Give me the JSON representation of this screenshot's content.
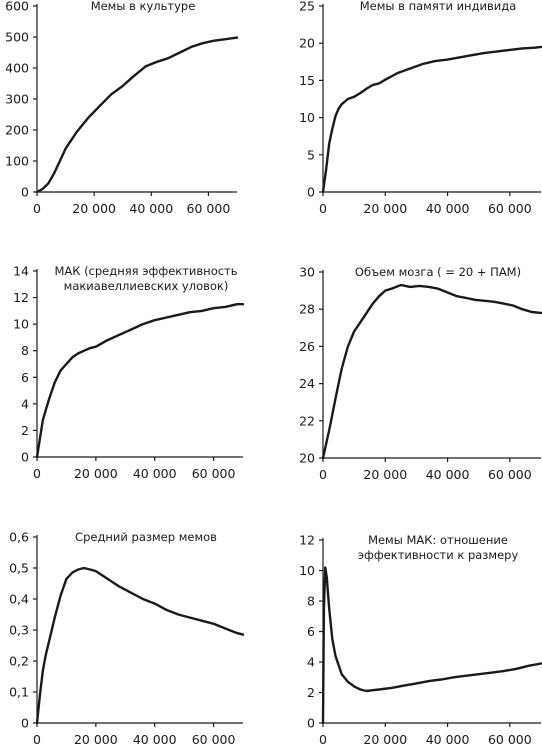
{
  "chart_data": [
    {
      "type": "line",
      "title": [
        "Мемы в культуре"
      ],
      "x_ticks": [
        "0",
        "20 000",
        "40 000",
        "60 000"
      ],
      "y_ticks": [
        "0",
        "100",
        "200",
        "300",
        "400",
        "500",
        "600"
      ],
      "xlim": [
        0,
        70000
      ],
      "ylim": [
        0,
        600
      ],
      "x": [
        0,
        2000,
        4000,
        6000,
        8000,
        10000,
        14000,
        18000,
        22000,
        26000,
        30000,
        34000,
        38000,
        42000,
        46000,
        50000,
        54000,
        58000,
        62000,
        66000,
        70000
      ],
      "y": [
        0,
        10,
        28,
        60,
        100,
        140,
        195,
        240,
        278,
        315,
        342,
        375,
        405,
        420,
        432,
        450,
        468,
        480,
        488,
        493,
        498
      ]
    },
    {
      "type": "line",
      "title": [
        "Мемы в памяти индивида"
      ],
      "x_ticks": [
        "0",
        "20 000",
        "40 000",
        "60 000"
      ],
      "y_ticks": [
        "0",
        "5",
        "10",
        "15",
        "20",
        "25"
      ],
      "xlim": [
        0,
        70000
      ],
      "ylim": [
        0,
        25
      ],
      "x": [
        0,
        1000,
        2000,
        3000,
        4000,
        5000,
        6000,
        8000,
        10000,
        12000,
        14000,
        16000,
        18000,
        20000,
        24000,
        28000,
        32000,
        36000,
        40000,
        44000,
        48000,
        52000,
        56000,
        60000,
        64000,
        68000,
        70000
      ],
      "y": [
        0,
        3,
        6.5,
        8.5,
        10.2,
        11.2,
        11.8,
        12.5,
        12.8,
        13.3,
        13.9,
        14.4,
        14.6,
        15.1,
        16.0,
        16.6,
        17.2,
        17.6,
        17.8,
        18.1,
        18.4,
        18.7,
        18.9,
        19.1,
        19.3,
        19.4,
        19.5
      ]
    },
    {
      "type": "line",
      "title": [
        "МАК (средняя эффективность",
        "макиавеллиевских уловок)"
      ],
      "x_ticks": [
        "0",
        "20 000",
        "40 000",
        "60 000"
      ],
      "y_ticks": [
        "0",
        "2",
        "4",
        "6",
        "8",
        "10",
        "12",
        "14"
      ],
      "xlim": [
        0,
        70000
      ],
      "ylim": [
        0,
        14
      ],
      "x": [
        0,
        2000,
        4000,
        6000,
        8000,
        10000,
        12000,
        14000,
        16000,
        18000,
        20000,
        24000,
        28000,
        32000,
        36000,
        40000,
        44000,
        48000,
        52000,
        56000,
        60000,
        64000,
        68000,
        70000
      ],
      "y": [
        0,
        2.8,
        4.3,
        5.6,
        6.5,
        7.0,
        7.5,
        7.8,
        8.0,
        8.2,
        8.3,
        8.8,
        9.2,
        9.6,
        10.0,
        10.3,
        10.5,
        10.7,
        10.9,
        11.0,
        11.2,
        11.3,
        11.5,
        11.5
      ]
    },
    {
      "type": "line",
      "title": [
        "Объем мозга ( = 20 + ПАМ)"
      ],
      "x_ticks": [
        "0",
        "20 000",
        "40 000",
        "60 000"
      ],
      "y_ticks": [
        "20",
        "22",
        "24",
        "26",
        "28",
        "30"
      ],
      "xlim": [
        0,
        70000
      ],
      "ylim": [
        20,
        30
      ],
      "x": [
        0,
        2000,
        4000,
        6000,
        8000,
        10000,
        12000,
        14000,
        16000,
        18000,
        20000,
        22000,
        25000,
        28000,
        31000,
        34000,
        37000,
        40000,
        43000,
        46000,
        49000,
        52000,
        55000,
        58000,
        61000,
        64000,
        67000,
        70000
      ],
      "y": [
        20,
        21.5,
        23.2,
        24.8,
        26.0,
        26.8,
        27.3,
        27.8,
        28.3,
        28.7,
        29.0,
        29.1,
        29.3,
        29.2,
        29.25,
        29.2,
        29.1,
        28.9,
        28.7,
        28.6,
        28.5,
        28.45,
        28.4,
        28.3,
        28.2,
        28.0,
        27.85,
        27.8
      ]
    },
    {
      "type": "line",
      "title": [
        "Средний размер мемов"
      ],
      "x_ticks": [
        "0",
        "20 000",
        "40 000",
        "60 000"
      ],
      "y_ticks": [
        "0",
        "0,1",
        "0,2",
        "0,3",
        "0,4",
        "0,5",
        "0,6"
      ],
      "xlim": [
        0,
        70000
      ],
      "ylim": [
        0,
        0.6
      ],
      "x": [
        0,
        1000,
        2000,
        3000,
        4000,
        6000,
        8000,
        10000,
        12000,
        14000,
        16000,
        18000,
        20000,
        24000,
        28000,
        32000,
        36000,
        40000,
        44000,
        48000,
        52000,
        56000,
        60000,
        64000,
        68000,
        70000
      ],
      "y": [
        0,
        0.09,
        0.17,
        0.22,
        0.26,
        0.34,
        0.41,
        0.465,
        0.485,
        0.495,
        0.5,
        0.495,
        0.49,
        0.465,
        0.44,
        0.42,
        0.4,
        0.385,
        0.365,
        0.35,
        0.34,
        0.33,
        0.32,
        0.305,
        0.29,
        0.285
      ]
    },
    {
      "type": "line",
      "title": [
        "Мемы МАК: отношение",
        "эффективности к размеру"
      ],
      "x_ticks": [
        "0",
        "20 000",
        "40 000",
        "60 000"
      ],
      "y_ticks": [
        "0",
        "2",
        "4",
        "6",
        "8",
        "10",
        "12"
      ],
      "xlim": [
        0,
        70000
      ],
      "ylim": [
        0,
        12
      ],
      "x": [
        0,
        300,
        700,
        1200,
        2000,
        3000,
        4000,
        6000,
        8000,
        10000,
        12000,
        14000,
        16000,
        18000,
        22000,
        26000,
        30000,
        34000,
        38000,
        42000,
        46000,
        50000,
        54000,
        58000,
        62000,
        66000,
        70000
      ],
      "y": [
        0,
        7.5,
        10.2,
        9.6,
        7.5,
        5.5,
        4.4,
        3.2,
        2.7,
        2.4,
        2.2,
        2.1,
        2.15,
        2.2,
        2.3,
        2.45,
        2.6,
        2.75,
        2.85,
        3.0,
        3.1,
        3.2,
        3.3,
        3.4,
        3.55,
        3.75,
        3.9
      ]
    }
  ]
}
